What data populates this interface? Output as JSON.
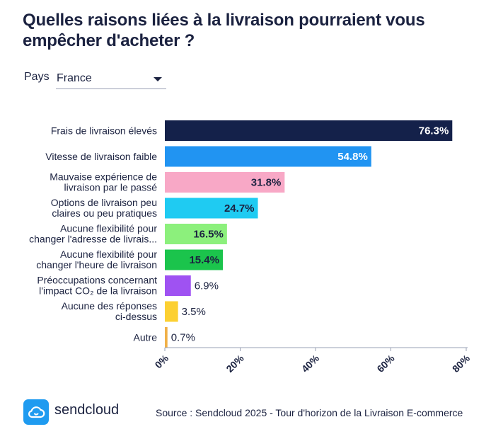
{
  "title": "Quelles raisons liées à la livraison pourraient vous empêcher d'acheter ?",
  "filter": {
    "label": "Pays",
    "selected": "France"
  },
  "colors": {
    "bars": [
      "#14214a",
      "#2194f2",
      "#f8a8c6",
      "#1fcbf2",
      "#8cf07c",
      "#1bc44c",
      "#9f52f2",
      "#fcd032",
      "#f0b048"
    ],
    "text_in_bar": [
      "#ffffff",
      "#ffffff",
      "#1b2240",
      "#1b2240",
      "#1b2240",
      "#1b2240",
      null,
      null,
      null
    ],
    "axis_line": "#9aa0b4",
    "brand": "#1f9bf0"
  },
  "chart_data": {
    "type": "bar",
    "orientation": "horizontal",
    "categories": [
      [
        "Frais de livraison élevés"
      ],
      [
        "Vitesse de livraison faible"
      ],
      [
        "Mauvaise expérience de",
        "livraison par le passé"
      ],
      [
        "Options de livraison peu",
        "claires ou peu pratiques"
      ],
      [
        "Aucune flexibilité pour",
        "changer l'adresse de livrais..."
      ],
      [
        "Aucune flexibilité pour",
        "changer l'heure de livraison"
      ],
      [
        "Préoccupations concernant",
        "l'impact CO₂ de la livraison"
      ],
      [
        "Aucune des réponses",
        "ci-dessus"
      ],
      [
        "Autre"
      ]
    ],
    "values": [
      76.3,
      54.8,
      31.8,
      24.7,
      16.5,
      15.4,
      6.9,
      3.5,
      0.7
    ],
    "value_labels": [
      "76.3%",
      "54.8%",
      "31.8%",
      "24.7%",
      "16.5%",
      "15.4%",
      "6.9%",
      "3.5%",
      "0.7%"
    ],
    "xlim": [
      0,
      80
    ],
    "xticks": [
      0,
      20,
      40,
      60,
      80
    ],
    "xtick_labels": [
      "0%",
      "20%",
      "40%",
      "60%",
      "80%"
    ],
    "grid": false
  },
  "footer": {
    "brand": "sendcloud",
    "source": "Source : Sendcloud 2025 - Tour d'horizon de la Livraison E-commerce"
  }
}
